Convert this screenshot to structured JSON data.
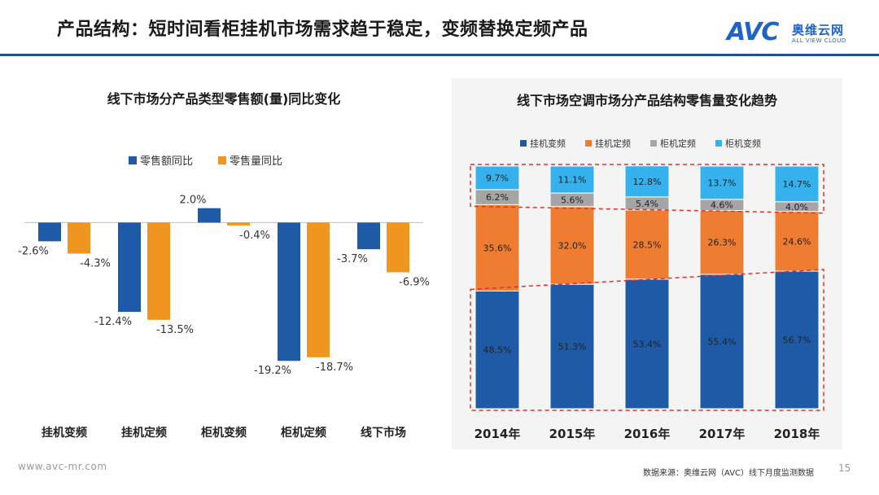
{
  "header": {
    "title": "产品结构：短时间看柜挂机市场需求趋于稳定，变频替换定频产品"
  },
  "logo": {
    "mark": "AVC",
    "name_cn": "奥维云网",
    "name_en": "ALL VIEW CLOUD"
  },
  "footer": {
    "url": "www.avc-mr.com",
    "source": "数据来源：奥维云网（AVC）线下月度监测数据",
    "page_number": "15"
  },
  "chart_data": [
    {
      "type": "bar",
      "title": "线下市场分产品类型零售额(量)同比变化",
      "categories": [
        "挂机变频",
        "挂机定频",
        "柜机变频",
        "柜机定频",
        "线下市场"
      ],
      "series": [
        {
          "name": "零售额同比",
          "values": [
            -2.6,
            -12.4,
            2.0,
            -19.2,
            -3.7
          ],
          "labels": [
            "-2.6%",
            "-12.4%",
            "2.0%",
            "-19.2%",
            "-3.7%"
          ],
          "color": "#1f5aa6"
        },
        {
          "name": "零售量同比",
          "values": [
            -4.3,
            -13.5,
            -0.4,
            -18.7,
            -6.9
          ],
          "labels": [
            "-4.3%",
            "-13.5%",
            "-0.4%",
            "-18.7%",
            "-6.9%"
          ],
          "color": "#f0951f"
        }
      ],
      "ylim": [
        -22,
        4
      ],
      "legend": "top-right",
      "grid": false
    },
    {
      "type": "bar",
      "stacked": true,
      "title": "线下市场空调市场分产品结构零售量变化趋势",
      "categories": [
        "2014年",
        "2015年",
        "2016年",
        "2017年",
        "2018年"
      ],
      "series": [
        {
          "name": "挂机变频",
          "values": [
            48.5,
            51.3,
            53.4,
            55.4,
            56.7
          ],
          "labels": [
            "48.5%",
            "51.3%",
            "53.4%",
            "55.4%",
            "56.7%"
          ],
          "color": "#1f5aa6"
        },
        {
          "name": "挂机定频",
          "values": [
            35.6,
            32.0,
            28.5,
            26.3,
            24.6
          ],
          "labels": [
            "35.6%",
            "32.0%",
            "28.5%",
            "26.3%",
            "24.6%"
          ],
          "color": "#ef7d31"
        },
        {
          "name": "柜机定频",
          "values": [
            6.2,
            5.6,
            5.4,
            4.6,
            4.0
          ],
          "labels": [
            "6.2%",
            "5.6%",
            "5.4%",
            "4.6%",
            "4.0%"
          ],
          "color": "#a5a5a5"
        },
        {
          "name": "柜机变频",
          "values": [
            9.7,
            11.1,
            12.8,
            13.7,
            14.7
          ],
          "labels": [
            "9.7%",
            "11.1%",
            "12.8%",
            "13.7%",
            "14.7%"
          ],
          "color": "#35b2ee"
        }
      ],
      "ylim": [
        0,
        100
      ],
      "legend": "top",
      "grid": false
    }
  ]
}
